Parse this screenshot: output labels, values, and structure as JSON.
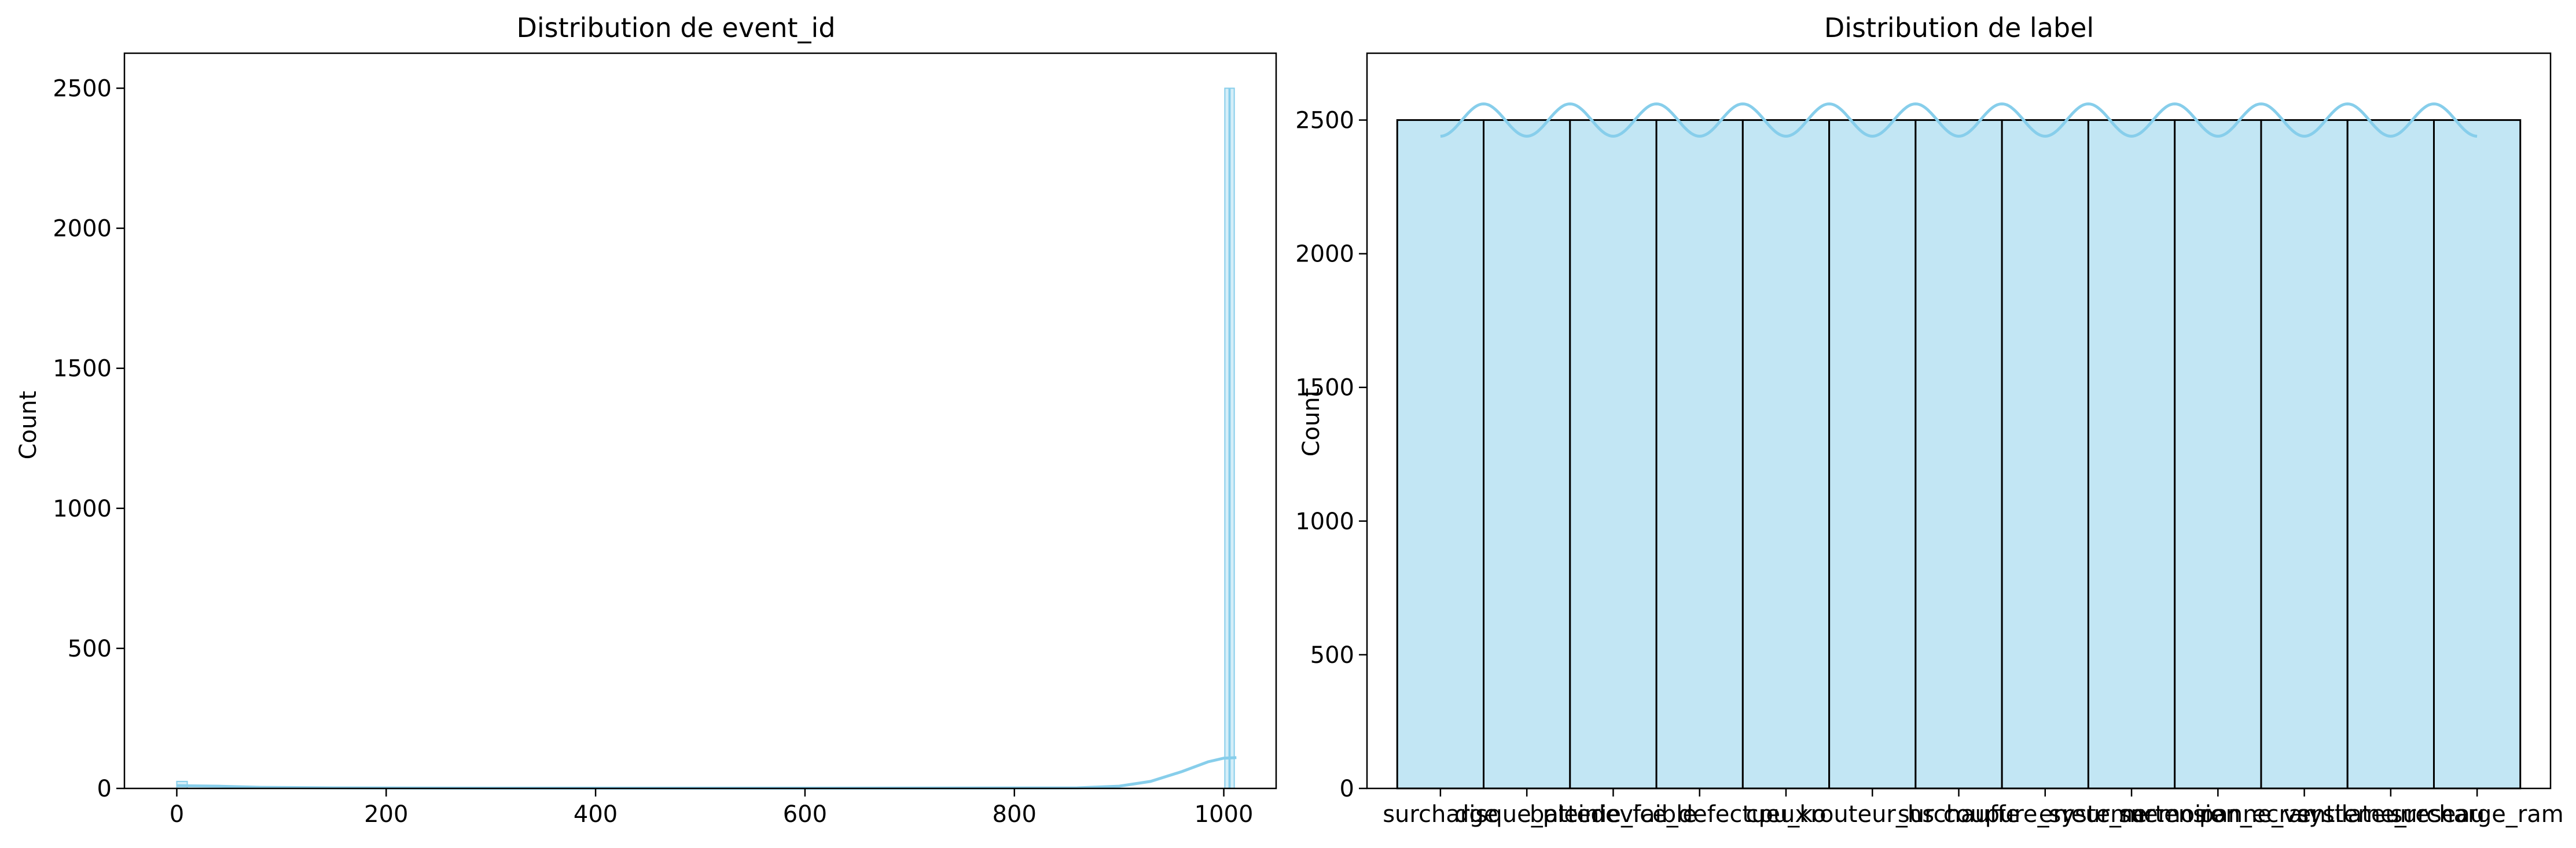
{
  "chart_data": [
    {
      "type": "bar",
      "title": "Distribution de event_id",
      "xlabel": "",
      "ylabel": "Count",
      "xlim": [
        -50,
        1050
      ],
      "ylim": [
        0,
        2625
      ],
      "xticks": [
        0,
        200,
        400,
        600,
        800,
        1000
      ],
      "yticks": [
        0,
        500,
        1000,
        1500,
        2000,
        2500
      ],
      "bar_color": "#87CEEB",
      "kde_color": "#87CEEB",
      "grid": false,
      "bins": [
        {
          "x0": 0,
          "x1": 10,
          "count": 25
        },
        {
          "x0": 1001,
          "x1": 1005,
          "count": 2500
        },
        {
          "x0": 1006,
          "x1": 1010,
          "count": 2500
        }
      ],
      "kde": [
        [
          0,
          10
        ],
        [
          40,
          8
        ],
        [
          80,
          4
        ],
        [
          150,
          2
        ],
        [
          300,
          1
        ],
        [
          600,
          1
        ],
        [
          860,
          2
        ],
        [
          900,
          8
        ],
        [
          930,
          25
        ],
        [
          960,
          60
        ],
        [
          985,
          95
        ],
        [
          1000,
          108
        ],
        [
          1012,
          110
        ]
      ]
    },
    {
      "type": "bar",
      "title": "Distribution de label",
      "xlabel": "",
      "ylabel": "Count",
      "ylim": [
        0,
        2750
      ],
      "yticks": [
        0,
        500,
        1000,
        1500,
        2000,
        2500
      ],
      "bar_color": "#C2E6F4",
      "edge_color": "#000000",
      "kde_color": "#87CEEB",
      "grid": false,
      "categories": [
        "surcharge",
        "disque_plein",
        "batterie_faible",
        "device_defectueux",
        "cpu_ko",
        "routeur_hs",
        "surchauffe",
        "coupure_systeme",
        "erreur_memoire",
        "surtension_ecran",
        "panne_ventilateur",
        "systeme_reseau",
        "surcharge_ram"
      ],
      "tick_labels_display": [
        "surcharge",
        "disque_plein",
        "batterie_faible",
        "device_defectueux",
        "cpu_ko",
        "routeur_hs",
        "surchauffe",
        "coupure_systeme",
        "erreur_memoire",
        "surtension_ecran",
        "panne_ventilateur",
        "systeme_reseau",
        "surcharge_ram"
      ],
      "values": [
        2500,
        2500,
        2500,
        2500,
        2500,
        2500,
        2500,
        2500,
        2500,
        2500,
        2500,
        2500,
        2500
      ],
      "kde_amplitude": 110
    }
  ]
}
